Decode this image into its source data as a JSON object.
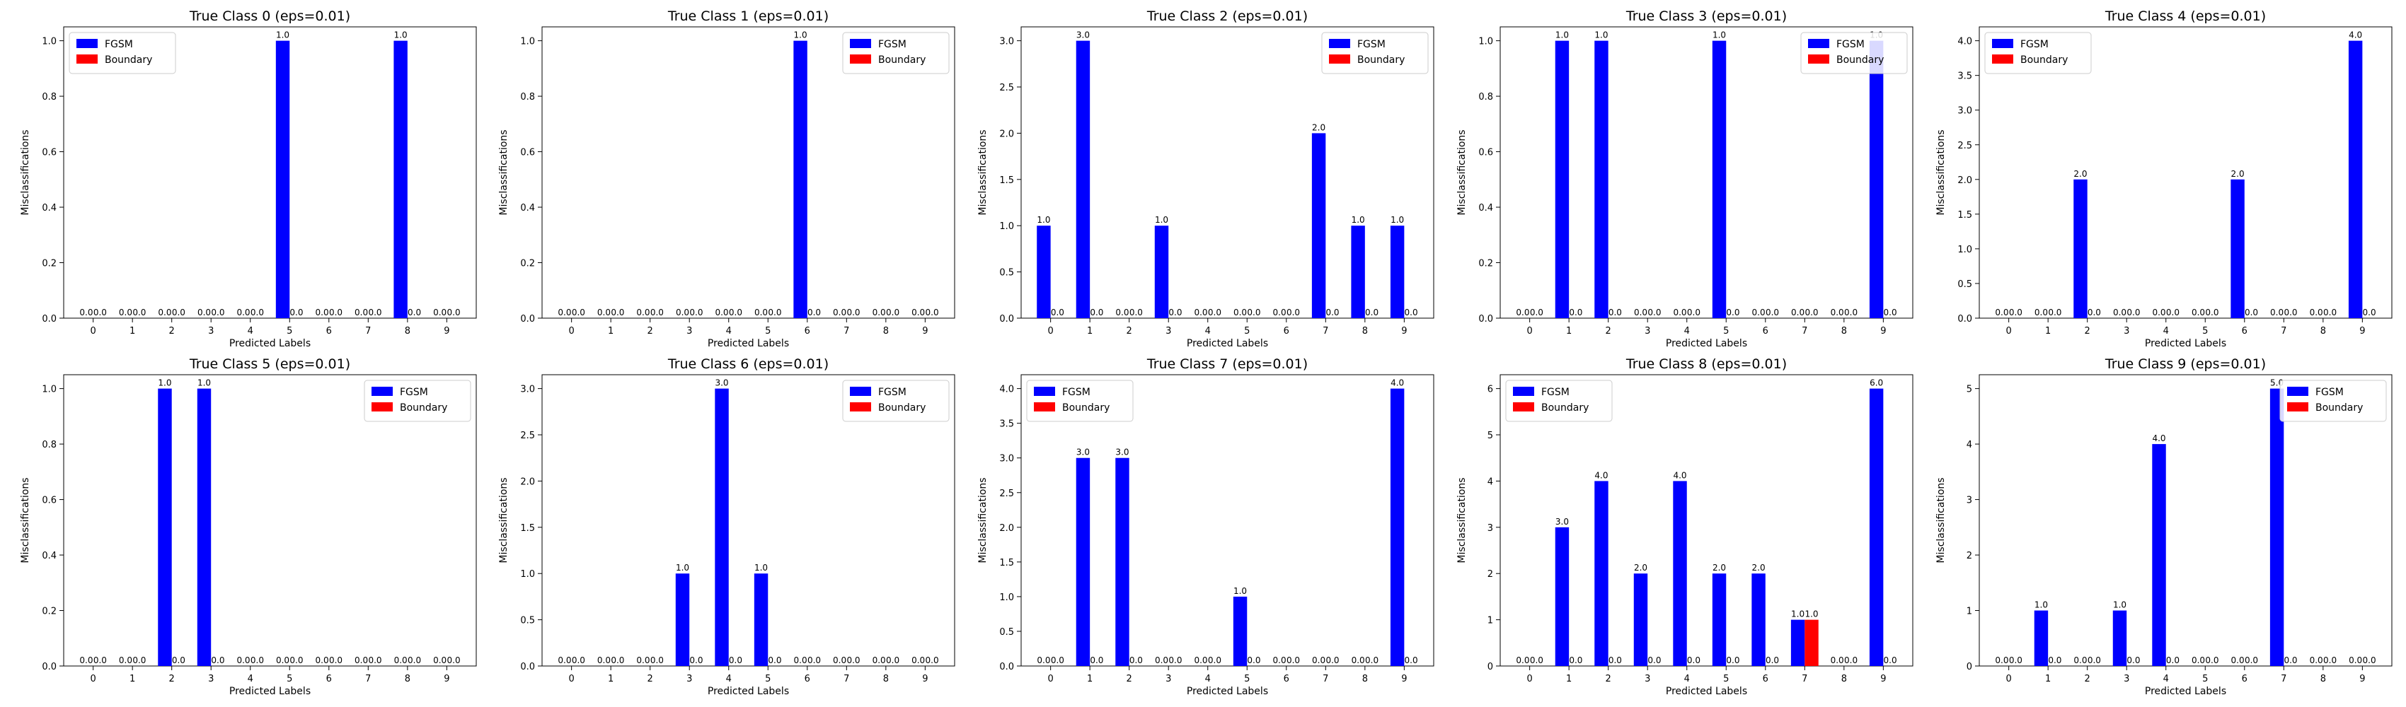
{
  "colors": {
    "fgsm": "#0000ff",
    "boundary": "#ff0000"
  },
  "chart_data": [
    {
      "type": "bar",
      "title": "True Class 0 (eps=0.01)",
      "xlabel": "Predicted Labels",
      "ylabel": "Misclassifications",
      "categories": [
        "0",
        "1",
        "2",
        "3",
        "4",
        "5",
        "6",
        "7",
        "8",
        "9"
      ],
      "ylim": [
        0,
        1.05
      ],
      "yticks": [
        "0.0",
        "0.2",
        "0.4",
        "0.6",
        "0.8",
        "1.0"
      ],
      "legend": "upper-left",
      "series": [
        {
          "name": "FGSM",
          "values": [
            0,
            0,
            0,
            0,
            0,
            1,
            0,
            0,
            1,
            0
          ]
        },
        {
          "name": "Boundary",
          "values": [
            0,
            0,
            0,
            0,
            0,
            0,
            0,
            0,
            0,
            0
          ]
        }
      ]
    },
    {
      "type": "bar",
      "title": "True Class 1 (eps=0.01)",
      "xlabel": "Predicted Labels",
      "ylabel": "Misclassifications",
      "categories": [
        "0",
        "1",
        "2",
        "3",
        "4",
        "5",
        "6",
        "7",
        "8",
        "9"
      ],
      "ylim": [
        0,
        1.05
      ],
      "yticks": [
        "0.0",
        "0.2",
        "0.4",
        "0.6",
        "0.8",
        "1.0"
      ],
      "legend": "upper-right",
      "series": [
        {
          "name": "FGSM",
          "values": [
            0,
            0,
            0,
            0,
            0,
            0,
            1,
            0,
            0,
            0
          ]
        },
        {
          "name": "Boundary",
          "values": [
            0,
            0,
            0,
            0,
            0,
            0,
            0,
            0,
            0,
            0
          ]
        }
      ]
    },
    {
      "type": "bar",
      "title": "True Class 2 (eps=0.01)",
      "xlabel": "Predicted Labels",
      "ylabel": "Misclassifications",
      "categories": [
        "0",
        "1",
        "2",
        "3",
        "4",
        "5",
        "6",
        "7",
        "8",
        "9"
      ],
      "ylim": [
        0,
        3.15
      ],
      "yticks": [
        "0.0",
        "0.5",
        "1.0",
        "1.5",
        "2.0",
        "2.5",
        "3.0"
      ],
      "legend": "upper-right",
      "series": [
        {
          "name": "FGSM",
          "values": [
            1,
            3,
            0,
            1,
            0,
            0,
            0,
            2,
            1,
            1
          ]
        },
        {
          "name": "Boundary",
          "values": [
            0,
            0,
            0,
            0,
            0,
            0,
            0,
            0,
            0,
            0
          ]
        }
      ]
    },
    {
      "type": "bar",
      "title": "True Class 3 (eps=0.01)",
      "xlabel": "Predicted Labels",
      "ylabel": "Misclassifications",
      "categories": [
        "0",
        "1",
        "2",
        "3",
        "4",
        "5",
        "6",
        "7",
        "8",
        "9"
      ],
      "ylim": [
        0,
        1.05
      ],
      "yticks": [
        "0.0",
        "0.2",
        "0.4",
        "0.6",
        "0.8",
        "1.0"
      ],
      "legend": "upper-right",
      "series": [
        {
          "name": "FGSM",
          "values": [
            0,
            1,
            1,
            0,
            0,
            1,
            0,
            0,
            0,
            1
          ]
        },
        {
          "name": "Boundary",
          "values": [
            0,
            0,
            0,
            0,
            0,
            0,
            0,
            0,
            0,
            0
          ]
        }
      ]
    },
    {
      "type": "bar",
      "title": "True Class 4 (eps=0.01)",
      "xlabel": "Predicted Labels",
      "ylabel": "Misclassifications",
      "categories": [
        "0",
        "1",
        "2",
        "3",
        "4",
        "5",
        "6",
        "7",
        "8",
        "9"
      ],
      "ylim": [
        0,
        4.2
      ],
      "yticks": [
        "0.0",
        "0.5",
        "1.0",
        "1.5",
        "2.0",
        "2.5",
        "3.0",
        "3.5",
        "4.0"
      ],
      "legend": "upper-left",
      "series": [
        {
          "name": "FGSM",
          "values": [
            0,
            0,
            2,
            0,
            0,
            0,
            2,
            0,
            0,
            4
          ]
        },
        {
          "name": "Boundary",
          "values": [
            0,
            0,
            0,
            0,
            0,
            0,
            0,
            0,
            0,
            0
          ]
        }
      ]
    },
    {
      "type": "bar",
      "title": "True Class 5 (eps=0.01)",
      "xlabel": "Predicted Labels",
      "ylabel": "Misclassifications",
      "categories": [
        "0",
        "1",
        "2",
        "3",
        "4",
        "5",
        "6",
        "7",
        "8",
        "9"
      ],
      "ylim": [
        0,
        1.05
      ],
      "yticks": [
        "0.0",
        "0.2",
        "0.4",
        "0.6",
        "0.8",
        "1.0"
      ],
      "legend": "upper-right",
      "series": [
        {
          "name": "FGSM",
          "values": [
            0,
            0,
            1,
            1,
            0,
            0,
            0,
            0,
            0,
            0
          ]
        },
        {
          "name": "Boundary",
          "values": [
            0,
            0,
            0,
            0,
            0,
            0,
            0,
            0,
            0,
            0
          ]
        }
      ]
    },
    {
      "type": "bar",
      "title": "True Class 6 (eps=0.01)",
      "xlabel": "Predicted Labels",
      "ylabel": "Misclassifications",
      "categories": [
        "0",
        "1",
        "2",
        "3",
        "4",
        "5",
        "6",
        "7",
        "8",
        "9"
      ],
      "ylim": [
        0,
        3.15
      ],
      "yticks": [
        "0.0",
        "0.5",
        "1.0",
        "1.5",
        "2.0",
        "2.5",
        "3.0"
      ],
      "legend": "upper-right",
      "series": [
        {
          "name": "FGSM",
          "values": [
            0,
            0,
            0,
            1,
            3,
            1,
            0,
            0,
            0,
            0
          ]
        },
        {
          "name": "Boundary",
          "values": [
            0,
            0,
            0,
            0,
            0,
            0,
            0,
            0,
            0,
            0
          ]
        }
      ]
    },
    {
      "type": "bar",
      "title": "True Class 7 (eps=0.01)",
      "xlabel": "Predicted Labels",
      "ylabel": "Misclassifications",
      "categories": [
        "0",
        "1",
        "2",
        "3",
        "4",
        "5",
        "6",
        "7",
        "8",
        "9"
      ],
      "ylim": [
        0,
        4.2
      ],
      "yticks": [
        "0.0",
        "0.5",
        "1.0",
        "1.5",
        "2.0",
        "2.5",
        "3.0",
        "3.5",
        "4.0"
      ],
      "legend": "upper-left",
      "series": [
        {
          "name": "FGSM",
          "values": [
            0,
            3,
            3,
            0,
            0,
            1,
            0,
            0,
            0,
            4
          ]
        },
        {
          "name": "Boundary",
          "values": [
            0,
            0,
            0,
            0,
            0,
            0,
            0,
            0,
            0,
            0
          ]
        }
      ]
    },
    {
      "type": "bar",
      "title": "True Class 8 (eps=0.01)",
      "xlabel": "Predicted Labels",
      "ylabel": "Misclassifications",
      "categories": [
        "0",
        "1",
        "2",
        "3",
        "4",
        "5",
        "6",
        "7",
        "8",
        "9"
      ],
      "ylim": [
        0,
        6.3
      ],
      "yticks": [
        "0",
        "1",
        "2",
        "3",
        "4",
        "5",
        "6"
      ],
      "legend": "upper-left",
      "series": [
        {
          "name": "FGSM",
          "values": [
            0,
            3,
            4,
            2,
            4,
            2,
            2,
            1,
            0,
            6
          ]
        },
        {
          "name": "Boundary",
          "values": [
            0,
            0,
            0,
            0,
            0,
            0,
            0,
            1,
            0,
            0
          ]
        }
      ]
    },
    {
      "type": "bar",
      "title": "True Class 9 (eps=0.01)",
      "xlabel": "Predicted Labels",
      "ylabel": "Misclassifications",
      "categories": [
        "0",
        "1",
        "2",
        "3",
        "4",
        "5",
        "6",
        "7",
        "8",
        "9"
      ],
      "ylim": [
        0,
        5.25
      ],
      "yticks": [
        "0",
        "1",
        "2",
        "3",
        "4",
        "5"
      ],
      "legend": "upper-right",
      "series": [
        {
          "name": "FGSM",
          "values": [
            0,
            1,
            0,
            1,
            4,
            0,
            0,
            5,
            0,
            0
          ]
        },
        {
          "name": "Boundary",
          "values": [
            0,
            0,
            0,
            0,
            0,
            0,
            0,
            0,
            0,
            0
          ]
        }
      ]
    }
  ]
}
